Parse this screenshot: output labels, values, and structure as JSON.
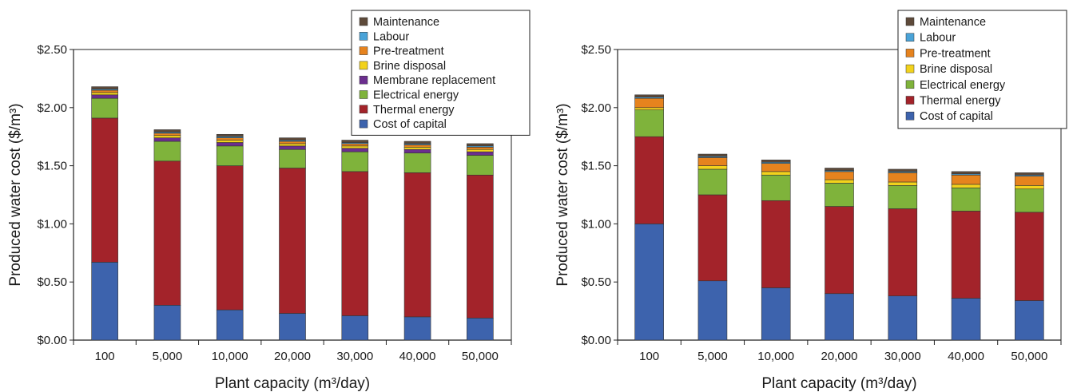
{
  "chart_data": [
    {
      "type": "bar",
      "stacked": true,
      "categories": [
        "100",
        "5,000",
        "10,000",
        "20,000",
        "30,000",
        "40,000",
        "50,000"
      ],
      "xlabel": "Plant capacity (m³/day)",
      "ylabel": "Produced water cost ($/m³)",
      "ylim": [
        0,
        2.5
      ],
      "yticks": [
        "$0.00",
        "$0.50",
        "$1.00",
        "$1.50",
        "$2.00",
        "$2.50"
      ],
      "grid": false,
      "legend_position": "top-right",
      "series": [
        {
          "name": "Cost of capital",
          "color": "#3d63ad",
          "values": [
            0.67,
            0.3,
            0.26,
            0.23,
            0.21,
            0.2,
            0.19
          ]
        },
        {
          "name": "Thermal energy",
          "color": "#a3232a",
          "values": [
            1.24,
            1.24,
            1.24,
            1.25,
            1.24,
            1.24,
            1.23
          ]
        },
        {
          "name": "Electrical energy",
          "color": "#7fb33b",
          "values": [
            0.17,
            0.17,
            0.17,
            0.16,
            0.17,
            0.17,
            0.17
          ]
        },
        {
          "name": "Membrane replacement",
          "color": "#6b2e8e",
          "values": [
            0.03,
            0.03,
            0.03,
            0.03,
            0.03,
            0.03,
            0.03
          ]
        },
        {
          "name": "Brine disposal",
          "color": "#f2d21c",
          "values": [
            0.02,
            0.02,
            0.02,
            0.02,
            0.02,
            0.02,
            0.02
          ]
        },
        {
          "name": "Pre-treatment",
          "color": "#e6831e",
          "values": [
            0.02,
            0.02,
            0.02,
            0.02,
            0.02,
            0.02,
            0.02
          ]
        },
        {
          "name": "Labour",
          "color": "#4aa3d8",
          "values": [
            0.01,
            0.01,
            0.01,
            0.01,
            0.01,
            0.01,
            0.01
          ]
        },
        {
          "name": "Maintenance",
          "color": "#5e4a3a",
          "values": [
            0.02,
            0.02,
            0.02,
            0.02,
            0.02,
            0.02,
            0.02
          ]
        }
      ]
    },
    {
      "type": "bar",
      "stacked": true,
      "categories": [
        "100",
        "5,000",
        "10,000",
        "20,000",
        "30,000",
        "40,000",
        "50,000"
      ],
      "xlabel": "Plant capacity (m³/day)",
      "ylabel": "Produced water cost ($/m³)",
      "ylim": [
        0,
        2.5
      ],
      "yticks": [
        "$0.00",
        "$0.50",
        "$1.00",
        "$1.50",
        "$2.00",
        "$2.50"
      ],
      "grid": false,
      "legend_position": "top-right",
      "series": [
        {
          "name": "Cost of capital",
          "color": "#3d63ad",
          "values": [
            1.0,
            0.51,
            0.45,
            0.4,
            0.38,
            0.36,
            0.34
          ]
        },
        {
          "name": "Thermal energy",
          "color": "#a3232a",
          "values": [
            0.75,
            0.74,
            0.75,
            0.75,
            0.75,
            0.75,
            0.76
          ]
        },
        {
          "name": "Electrical energy",
          "color": "#7fb33b",
          "values": [
            0.23,
            0.22,
            0.22,
            0.2,
            0.2,
            0.2,
            0.2
          ]
        },
        {
          "name": "Brine disposal",
          "color": "#f2d21c",
          "values": [
            0.02,
            0.03,
            0.03,
            0.03,
            0.03,
            0.03,
            0.03
          ]
        },
        {
          "name": "Pre-treatment",
          "color": "#e6831e",
          "values": [
            0.08,
            0.07,
            0.07,
            0.07,
            0.08,
            0.08,
            0.08
          ]
        },
        {
          "name": "Labour",
          "color": "#4aa3d8",
          "values": [
            0.01,
            0.01,
            0.01,
            0.01,
            0.01,
            0.01,
            0.01
          ]
        },
        {
          "name": "Maintenance",
          "color": "#5e4a3a",
          "values": [
            0.02,
            0.02,
            0.02,
            0.02,
            0.02,
            0.02,
            0.02
          ]
        }
      ]
    }
  ]
}
